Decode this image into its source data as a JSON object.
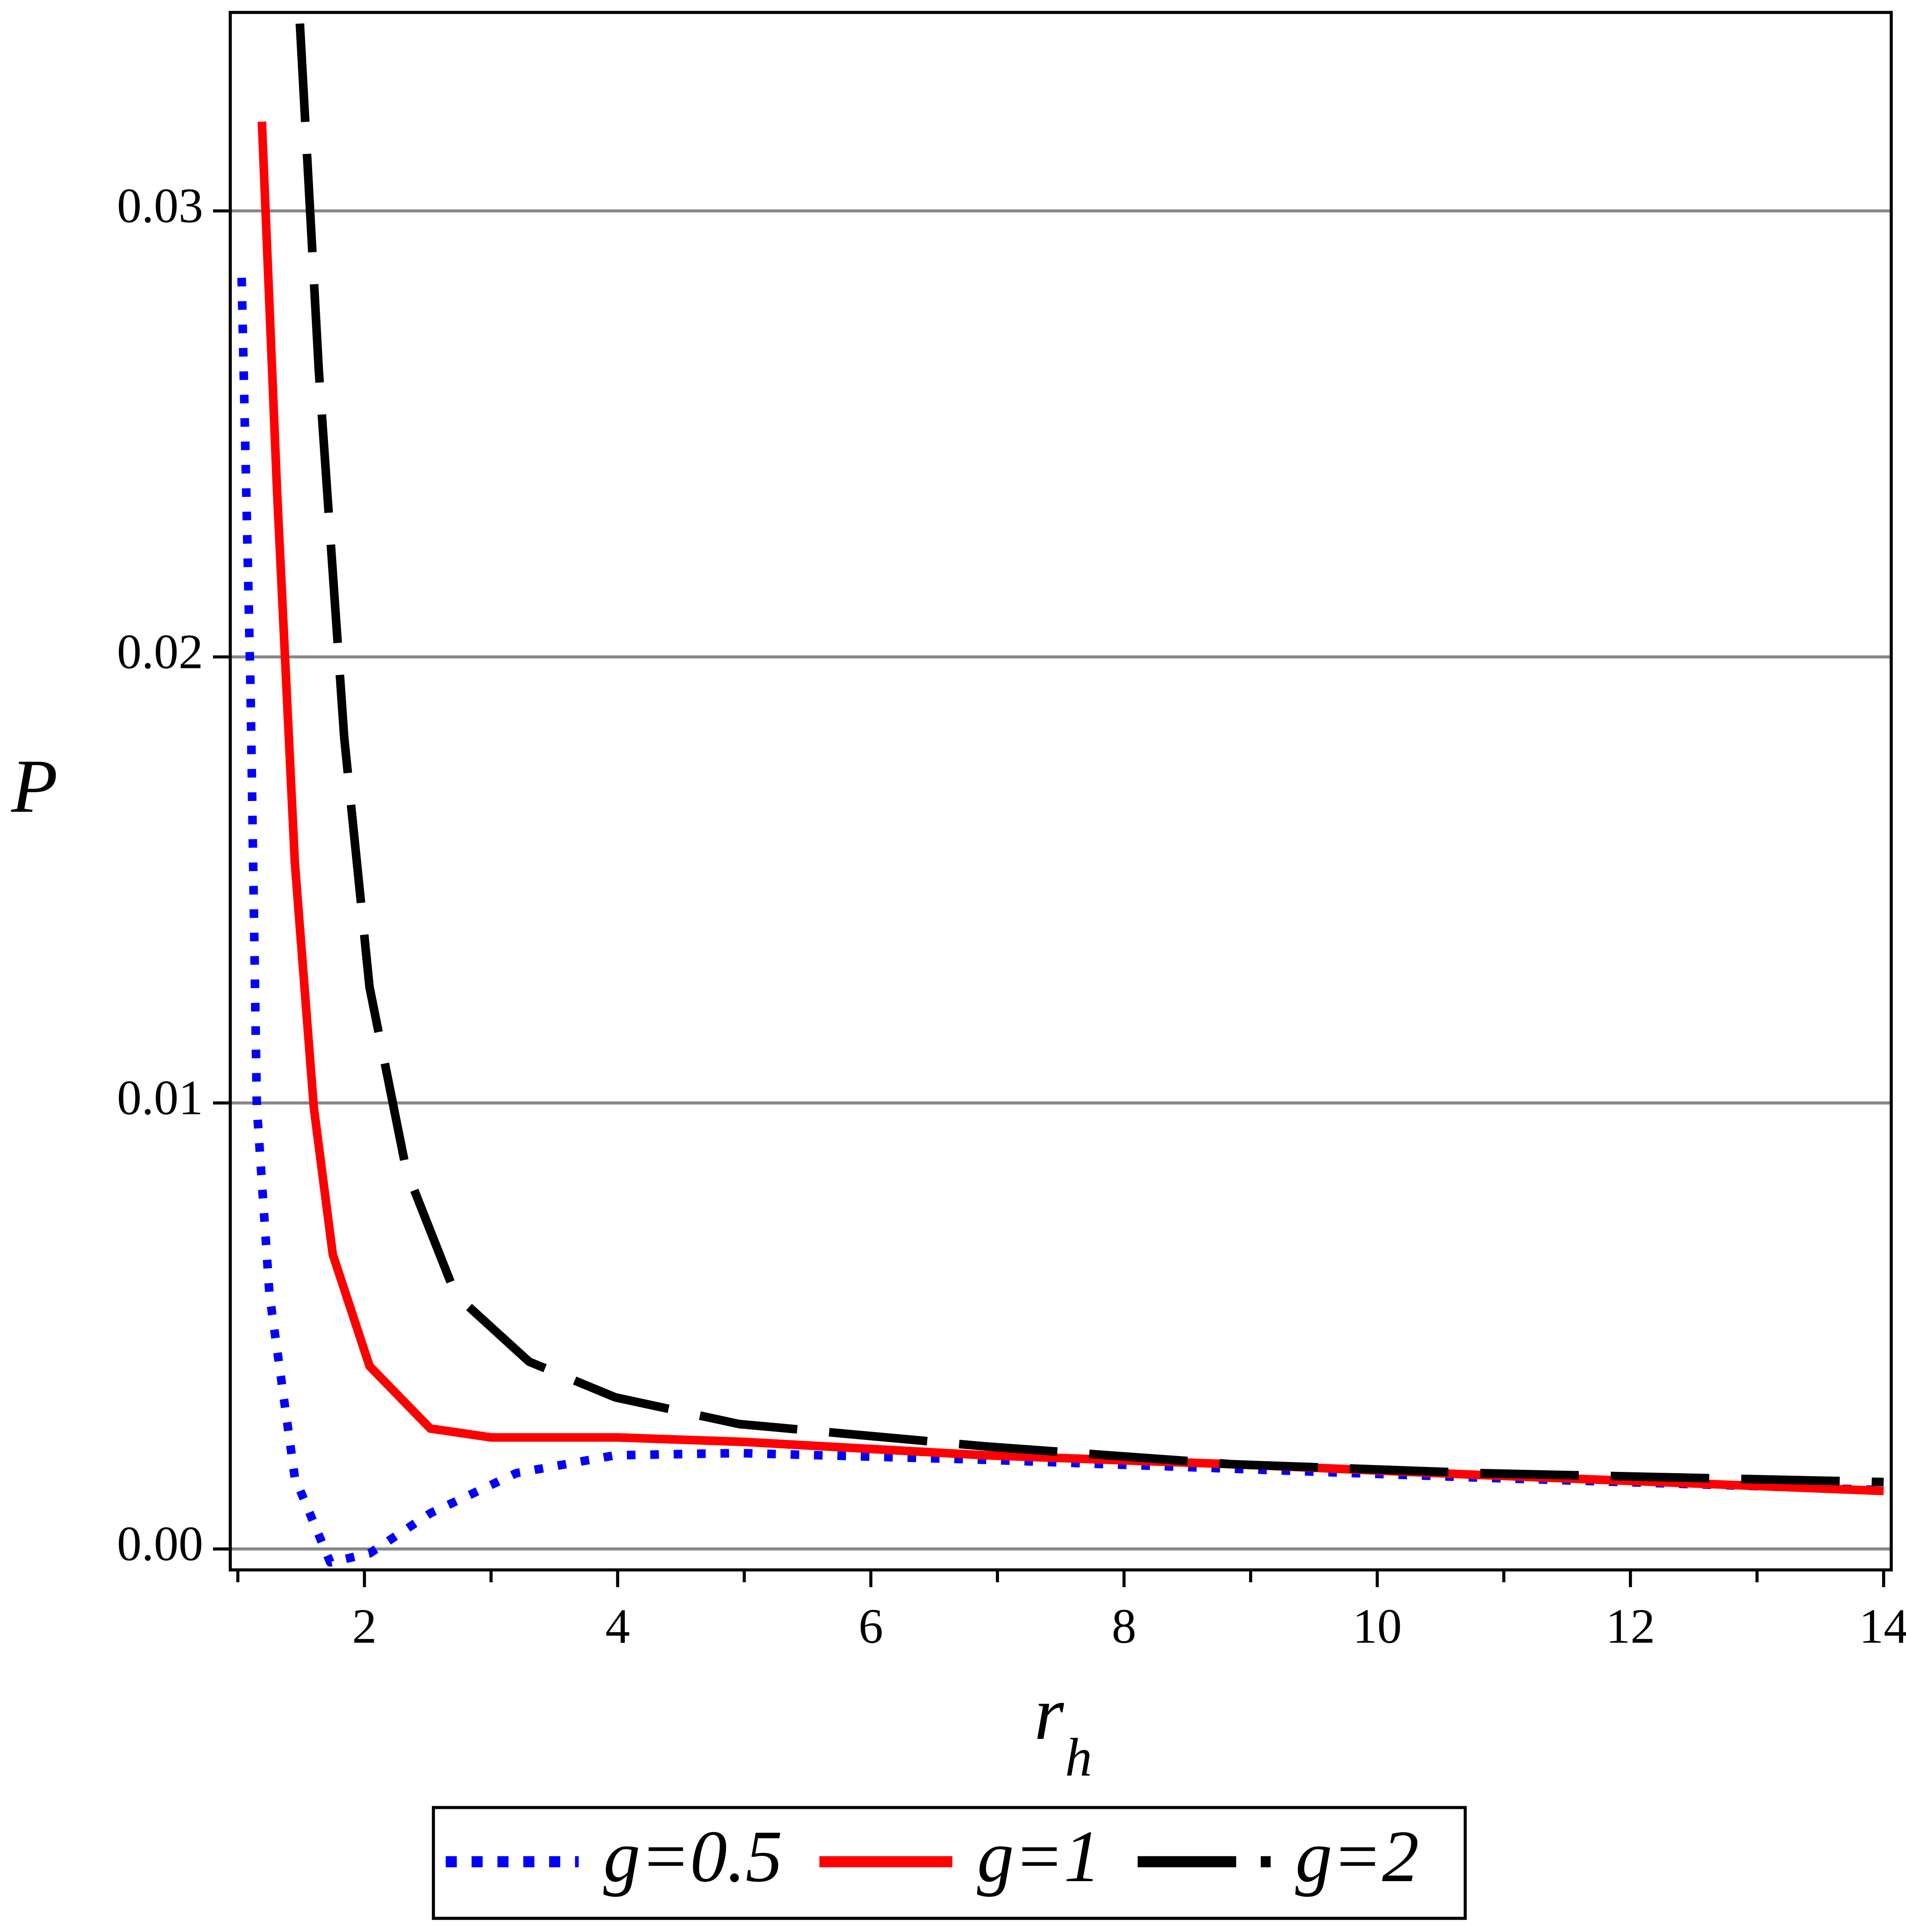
{
  "chart_data": {
    "type": "line",
    "ylabel": "P",
    "xlabel": "r",
    "xlabel_subscript": "h",
    "xlim": [
      0.94,
      14.06
    ],
    "ylim": [
      -0.00047,
      0.03445
    ],
    "xticks": [
      2,
      4,
      6,
      8,
      10,
      12,
      14
    ],
    "xminor_ticks": [
      1,
      3,
      5,
      7,
      9,
      11,
      13
    ],
    "yticks": [
      {
        "value": 0,
        "label": "0.00"
      },
      0.01,
      0.02,
      0.03
    ],
    "grid": true,
    "legend": "bottom",
    "series": [
      {
        "name": "g=0.5",
        "color": "#0000ff",
        "style": "dotted",
        "x": [
          1.03,
          1.1,
          1.15,
          1.25,
          1.45,
          1.73,
          2.04,
          2.52,
          3.2,
          3.98,
          4.96,
          6.9,
          8.85,
          10.8,
          14
        ],
        "values": [
          0.0285,
          0.0193,
          0.0099,
          0.0057,
          0.0016,
          -0.0003,
          -0.0001,
          0.0008,
          0.0017,
          0.0021,
          0.00215,
          0.002,
          0.0018,
          0.0016,
          0.00132
        ]
      },
      {
        "name": "g=1",
        "color": "#ff0000",
        "style": "solid",
        "x": [
          1.19,
          1.31,
          1.45,
          1.6,
          1.75,
          2.04,
          2.52,
          3.0,
          4.0,
          5.0,
          6.9,
          8.85,
          10.8,
          14
        ],
        "values": [
          0.032,
          0.0237,
          0.0154,
          0.0099,
          0.0066,
          0.0041,
          0.0027,
          0.0025,
          0.0025,
          0.0024,
          0.0021,
          0.0019,
          0.00166,
          0.0013
        ]
      },
      {
        "name": "g=2",
        "color": "#000000",
        "style": "dashed",
        "x": [
          1.49,
          1.64,
          1.84,
          2.04,
          2.33,
          2.72,
          3.3,
          3.98,
          4.96,
          6.9,
          8.85,
          10.8,
          14
        ],
        "values": [
          0.0342,
          0.0264,
          0.0182,
          0.0126,
          0.0085,
          0.0057,
          0.0042,
          0.0034,
          0.0028,
          0.0023,
          0.0019,
          0.0017,
          0.0015
        ]
      }
    ]
  }
}
